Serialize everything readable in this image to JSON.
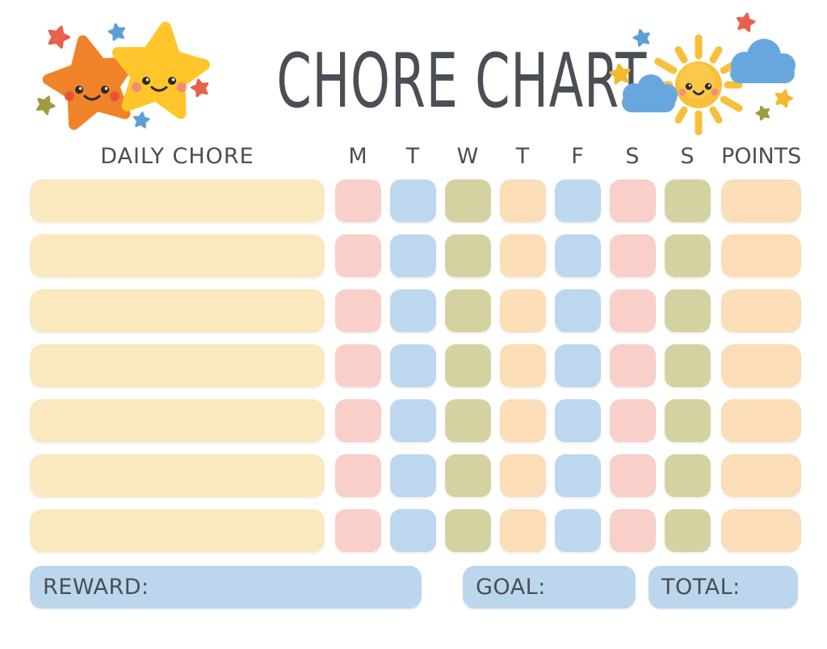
{
  "title": "CHORE CHART",
  "colors": {
    "text": "#4A4F55",
    "cream": "#FAE9BF",
    "pink": "#F8CFC9",
    "blue": "#BDD8EE",
    "olive": "#D5D2A2",
    "peach": "#FBDDB7",
    "footer_blue": "#BCD7ED"
  },
  "header": {
    "chore_column_label": "DAILY CHORE",
    "day_labels": [
      "M",
      "T",
      "W",
      "T",
      "F",
      "S",
      "S"
    ],
    "points_column_label": "POINTS"
  },
  "grid": {
    "row_count": 7,
    "chore_cell_color": "cream",
    "day_cell_colors": [
      "pink",
      "blue",
      "olive",
      "peach",
      "blue",
      "pink",
      "olive"
    ],
    "points_cell_color": "peach",
    "rows": [
      {
        "chore": "",
        "days": [
          "",
          "",
          "",
          "",
          "",
          "",
          ""
        ],
        "points": ""
      },
      {
        "chore": "",
        "days": [
          "",
          "",
          "",
          "",
          "",
          "",
          ""
        ],
        "points": ""
      },
      {
        "chore": "",
        "days": [
          "",
          "",
          "",
          "",
          "",
          "",
          ""
        ],
        "points": ""
      },
      {
        "chore": "",
        "days": [
          "",
          "",
          "",
          "",
          "",
          "",
          ""
        ],
        "points": ""
      },
      {
        "chore": "",
        "days": [
          "",
          "",
          "",
          "",
          "",
          "",
          ""
        ],
        "points": ""
      },
      {
        "chore": "",
        "days": [
          "",
          "",
          "",
          "",
          "",
          "",
          ""
        ],
        "points": ""
      },
      {
        "chore": "",
        "days": [
          "",
          "",
          "",
          "",
          "",
          "",
          ""
        ],
        "points": ""
      }
    ]
  },
  "footer": {
    "reward_label": "REWARD:",
    "reward_value": "",
    "goal_label": "GOAL:",
    "goal_value": "",
    "total_label": "TOTAL:",
    "total_value": ""
  },
  "decorations": {
    "left_icons": [
      "orange-star-icon",
      "yellow-star-icon",
      "mini-star-red-icon",
      "mini-star-blue-icon",
      "mini-star-olive-icon",
      "mini-star-blue2-icon",
      "mini-star-red2-icon"
    ],
    "right_icons": [
      "sun-icon",
      "cloud-left-icon",
      "cloud-right-icon",
      "mini-star-blue-icon",
      "mini-star-red-icon",
      "mini-star-yellow-icon",
      "mini-star-yellow2-icon",
      "mini-star-olive-icon"
    ],
    "palette": {
      "orange_star": "#F08329",
      "yellow_star": "#FFC52B",
      "mini_red": "#E8614C",
      "mini_blue": "#5C9FD6",
      "mini_olive": "#9E9C3F",
      "mini_yellow": "#F4B82F",
      "sun": "#F8BF3B",
      "sun_highlight": "#FFD45E",
      "cloud": "#68A7DE",
      "face": "#2B2B2B",
      "cheek_orange_star": "#E5533B",
      "cheek_yellow_star": "#F28B77",
      "cheek_sun": "#ED9176"
    }
  }
}
